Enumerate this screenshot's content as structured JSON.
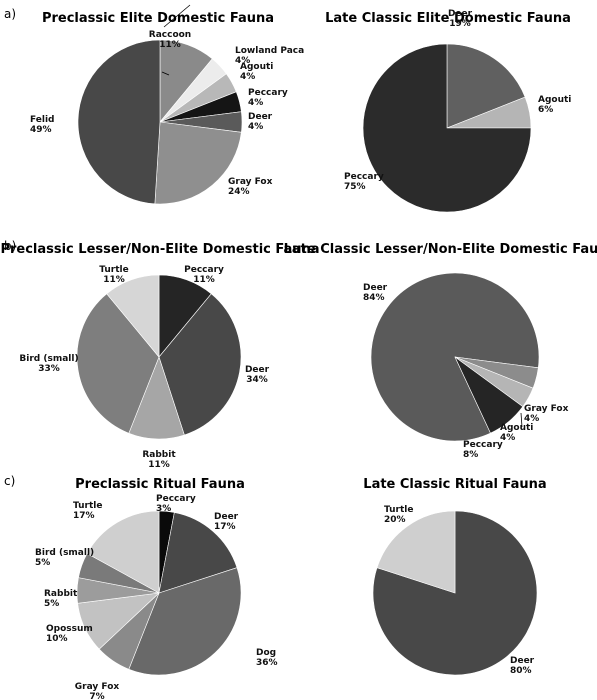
{
  "panels": [
    "a)",
    "b)",
    "c)"
  ],
  "chart_data": [
    {
      "type": "pie",
      "title": "Preclassic Elite Domestic Fauna",
      "slices": [
        {
          "label": "Raccoon",
          "value": 11,
          "pct": "11%",
          "color": "#8a8a8a"
        },
        {
          "label": "Lowland Paca",
          "value": 4,
          "pct": "4%",
          "color": "#ececec"
        },
        {
          "label": "Agouti",
          "value": 4,
          "pct": "4%",
          "color": "#b8b8b8"
        },
        {
          "label": "Peccary",
          "value": 4,
          "pct": "4%",
          "color": "#151515"
        },
        {
          "label": "Deer",
          "value": 4,
          "pct": "4%",
          "color": "#5a5a5a"
        },
        {
          "label": "Gray Fox",
          "value": 24,
          "pct": "24%",
          "color": "#8f8f8f"
        },
        {
          "label": "Felid",
          "value": 49,
          "pct": "49%",
          "color": "#484848"
        }
      ]
    },
    {
      "type": "pie",
      "title": "Late Classic Elite Domestic Fauna",
      "slices": [
        {
          "label": "Deer",
          "value": 19,
          "pct": "19%",
          "color": "#606060"
        },
        {
          "label": "Agouti",
          "value": 6,
          "pct": "6%",
          "color": "#b5b5b5"
        },
        {
          "label": "Peccary",
          "value": 75,
          "pct": "75%",
          "color": "#2b2b2b"
        }
      ]
    },
    {
      "type": "pie",
      "title": "Preclassic Lesser/Non-Elite Domestic Fauna",
      "slices": [
        {
          "label": "Peccary",
          "value": 11,
          "pct": "11%",
          "color": "#252525"
        },
        {
          "label": "Deer",
          "value": 34,
          "pct": "34%",
          "color": "#484848"
        },
        {
          "label": "Rabbit",
          "value": 11,
          "pct": "11%",
          "color": "#a6a6a6"
        },
        {
          "label": "Bird (small)",
          "value": 33,
          "pct": "33%",
          "color": "#7e7e7e"
        },
        {
          "label": "Turtle",
          "value": 11,
          "pct": "11%",
          "color": "#d6d6d6"
        }
      ]
    },
    {
      "type": "pie",
      "title": "Late Classic Lesser/Non-Elite Domestic Fauna",
      "slices": [
        {
          "label": "Deer",
          "value": 84,
          "pct": "84%",
          "color": "#5a5a5a"
        },
        {
          "label": "Gray Fox",
          "value": 4,
          "pct": "4%",
          "color": "#8c8c8c"
        },
        {
          "label": "Agouti",
          "value": 4,
          "pct": "4%",
          "color": "#b5b5b5"
        },
        {
          "label": "Peccary",
          "value": 8,
          "pct": "8%",
          "color": "#252525"
        }
      ]
    },
    {
      "type": "pie",
      "title": "Preclassic Ritual Fauna",
      "slices": [
        {
          "label": "Peccary",
          "value": 3,
          "pct": "3%",
          "color": "#0a0a0a"
        },
        {
          "label": "Deer",
          "value": 17,
          "pct": "17%",
          "color": "#484848"
        },
        {
          "label": "Dog",
          "value": 36,
          "pct": "36%",
          "color": "#696969"
        },
        {
          "label": "Gray Fox",
          "value": 7,
          "pct": "7%",
          "color": "#8a8a8a"
        },
        {
          "label": "Opossum",
          "value": 10,
          "pct": "10%",
          "color": "#c2c2c2"
        },
        {
          "label": "Rabbit",
          "value": 5,
          "pct": "5%",
          "color": "#9c9c9c"
        },
        {
          "label": "Bird (small)",
          "value": 5,
          "pct": "5%",
          "color": "#7a7a7a"
        },
        {
          "label": "Turtle",
          "value": 17,
          "pct": "17%",
          "color": "#cfcfcf"
        }
      ]
    },
    {
      "type": "pie",
      "title": "Late Classic Ritual Fauna",
      "slices": [
        {
          "label": "Deer",
          "value": 80,
          "pct": "80%",
          "color": "#484848"
        },
        {
          "label": "Turtle",
          "value": 20,
          "pct": "20%",
          "color": "#cfcfcf"
        }
      ]
    }
  ]
}
